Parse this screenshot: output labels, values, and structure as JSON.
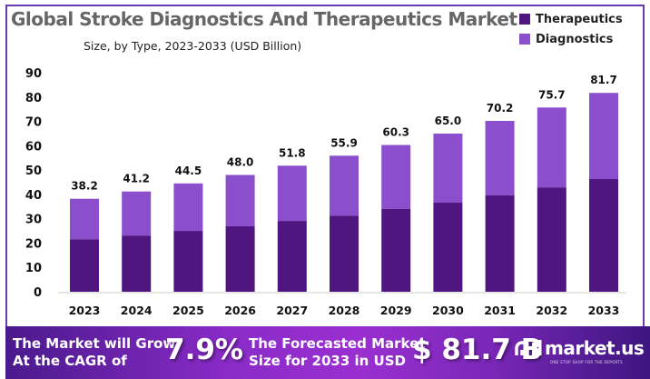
{
  "chart_data": {
    "type": "bar",
    "stacked": true,
    "title": "Global Stroke Diagnostics And Therapeutics Market",
    "subtitle": "Size, by Type, 2023-2033 (USD Billion)",
    "xlabel": "",
    "ylabel": "",
    "ylim": [
      0,
      90
    ],
    "yticks": [
      0,
      10,
      20,
      30,
      40,
      50,
      60,
      70,
      80,
      90
    ],
    "grid": false,
    "legend_position": "top-right",
    "categories": [
      "2023",
      "2024",
      "2025",
      "2026",
      "2027",
      "2028",
      "2029",
      "2030",
      "2031",
      "2032",
      "2033"
    ],
    "series": [
      {
        "name": "Therapeutics",
        "color": "#4f1680",
        "values": [
          21.6,
          23.1,
          25.0,
          26.9,
          29.1,
          31.3,
          34.0,
          36.6,
          39.6,
          42.9,
          46.3
        ]
      },
      {
        "name": "Diagnostics",
        "color": "#8b4fce",
        "values": [
          16.6,
          18.1,
          19.5,
          21.1,
          22.7,
          24.6,
          26.3,
          28.4,
          30.6,
          32.8,
          35.4
        ]
      }
    ],
    "totals": [
      38.2,
      41.2,
      44.5,
      48.0,
      51.8,
      55.9,
      60.3,
      65.0,
      70.2,
      75.7,
      81.7
    ],
    "total_labels": [
      "38.2",
      "41.2",
      "44.5",
      "48.0",
      "51.8",
      "55.9",
      "60.3",
      "65.0",
      "70.2",
      "75.7",
      "81.7"
    ]
  },
  "banner": {
    "cagr_text_line1": "The Market will Grow",
    "cagr_text_line2": "At the CAGR of",
    "cagr_value": "7.9%",
    "forecast_text_line1": "The Forecasted Market",
    "forecast_text_line2": "Size for 2033 in USD",
    "forecast_value": "$ 81.7 B",
    "logo_name": "market.us",
    "logo_tagline": "ONE STOP SHOP FOR THE REPORTS"
  }
}
